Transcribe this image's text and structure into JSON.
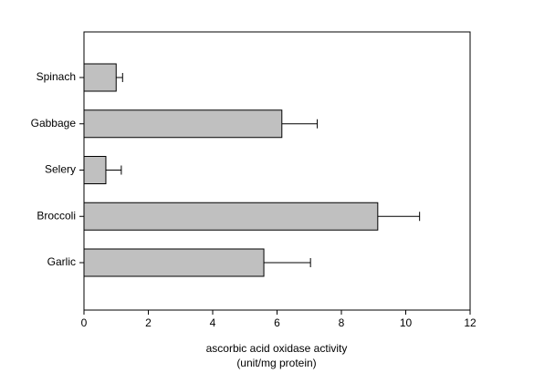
{
  "chart_data": {
    "type": "hbar",
    "categories": [
      "Spinach",
      "Gabbage",
      "Selery",
      "Broccoli",
      "Garlic"
    ],
    "values": [
      1.0,
      6.15,
      0.68,
      9.13,
      5.59
    ],
    "errors": [
      0.2,
      1.1,
      0.48,
      1.3,
      1.45
    ],
    "color": "#c0c0c0",
    "xlabel": [
      "ascorbic acid oxidase activity",
      "(unit/mg protein)"
    ],
    "xlim": [
      0,
      12
    ],
    "xticks": [
      0,
      2,
      4,
      6,
      8,
      10,
      12
    ]
  }
}
